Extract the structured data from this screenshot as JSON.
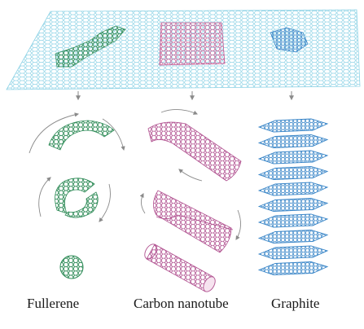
{
  "labels": {
    "fullerene": "Fullerene",
    "nanotube": "Carbon nanotube",
    "graphite": "Graphite"
  },
  "colors": {
    "graphene_sheet": "#8fd3e6",
    "fullerene": "#2e8b57",
    "nanotube": "#b0508f",
    "graphite": "#3a86c8",
    "arrow": "#8a8a8a"
  }
}
